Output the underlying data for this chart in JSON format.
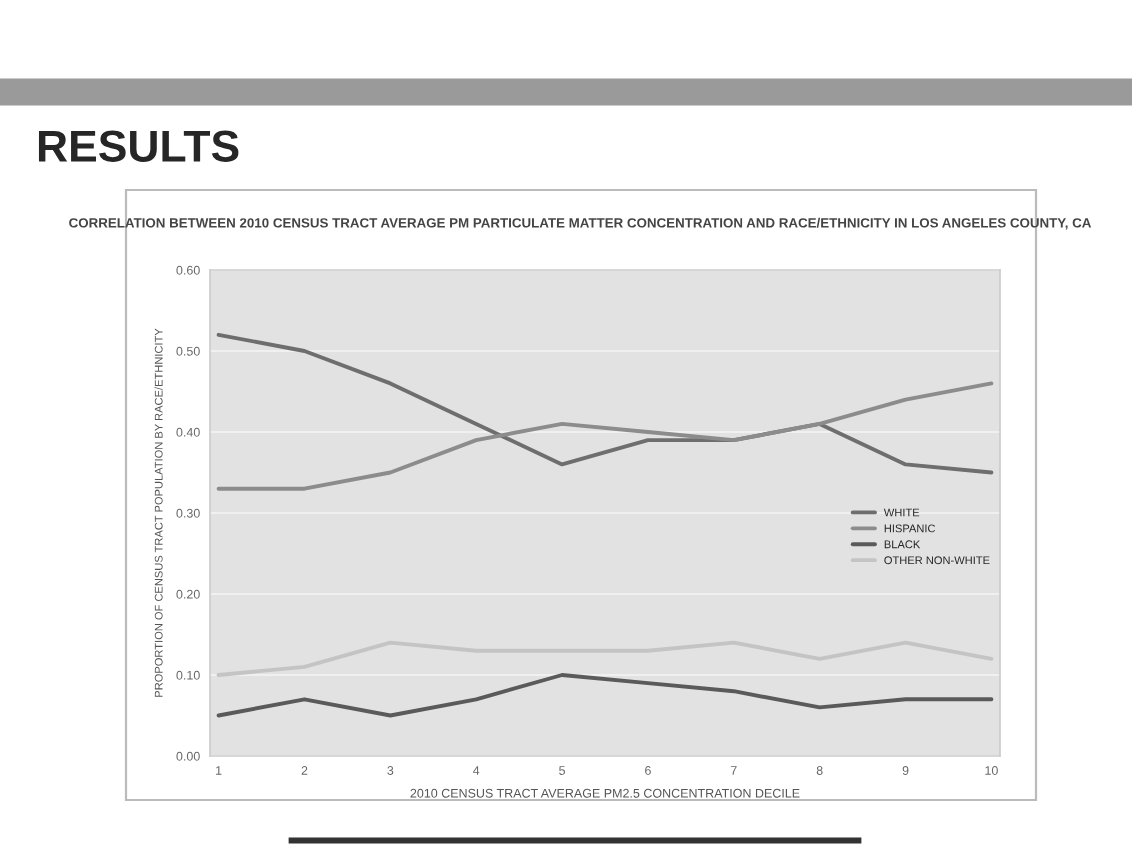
{
  "chart_data": {
    "type": "line",
    "title": "RESULTS",
    "subtitle": "CORRELATION BETWEEN 2010 CENSUS TRACT AVERAGE PM PARTICULATE MATTER CONCENTRATION AND RACE/ETHNICITY IN LOS ANGELES COUNTY, CA",
    "xlabel": "2010 CENSUS TRACT AVERAGE PM2.5 CONCENTRATION DECILE",
    "ylabel": "PROPORTION OF CENSUS TRACT POPULATION BY RACE/ETHNICITY",
    "categories": [
      "1",
      "2",
      "3",
      "4",
      "5",
      "6",
      "7",
      "8",
      "9",
      "10"
    ],
    "series": [
      {
        "name": "WHITE",
        "color": "#6e6e6e",
        "values": [
          0.52,
          0.5,
          0.46,
          0.41,
          0.36,
          0.39,
          0.39,
          0.41,
          0.36,
          0.35
        ]
      },
      {
        "name": "HISPANIC",
        "color": "#8c8c8c",
        "values": [
          0.33,
          0.33,
          0.35,
          0.39,
          0.41,
          0.4,
          0.39,
          0.41,
          0.44,
          0.46
        ]
      },
      {
        "name": "BLACK",
        "color": "#5a5a5a",
        "values": [
          0.05,
          0.07,
          0.05,
          0.07,
          0.1,
          0.09,
          0.08,
          0.06,
          0.07,
          0.07
        ]
      },
      {
        "name": "OTHER NON-WHITE",
        "color": "#c4c4c4",
        "values": [
          0.1,
          0.11,
          0.14,
          0.13,
          0.13,
          0.13,
          0.14,
          0.12,
          0.14,
          0.12
        ]
      }
    ],
    "ylim": [
      0,
      0.6
    ],
    "yticks": [
      {
        "value": 0,
        "label": "0.00"
      },
      {
        "value": 0.1,
        "label": "0.10"
      },
      {
        "value": 0.2,
        "label": "0.20"
      },
      {
        "value": 0.3,
        "label": "0.30"
      },
      {
        "value": 0.4,
        "label": "0.40"
      },
      {
        "value": 0.5,
        "label": "0.50"
      },
      {
        "value": 0.6,
        "label": "0.60"
      }
    ],
    "grid": "y",
    "legend": "right",
    "marker": "none",
    "line_style": "solid"
  }
}
